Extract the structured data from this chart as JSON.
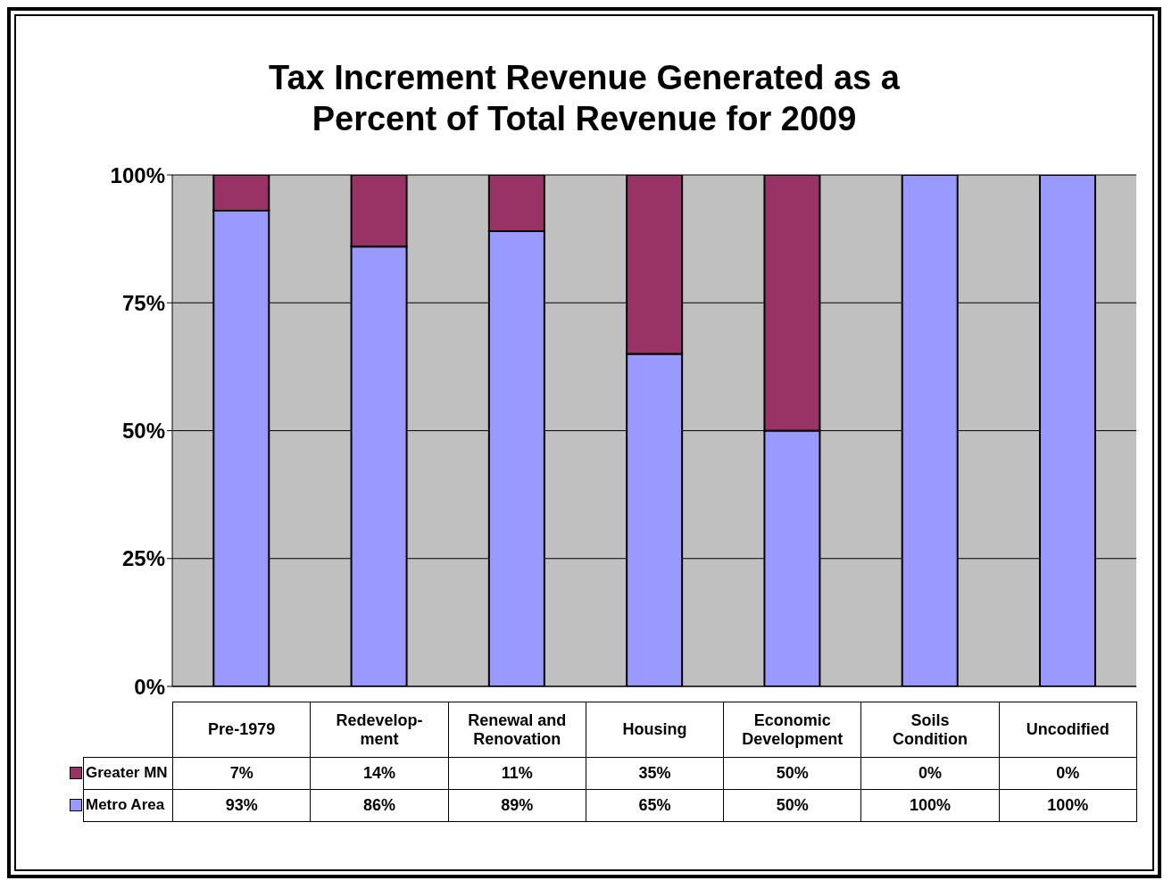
{
  "chart_data": {
    "type": "bar",
    "title": "Tax Increment Revenue Generated as a Percent of Total Revenue for 2009",
    "categories": [
      "Pre-1979",
      "Redevelop-ment",
      "Renewal and Renovation",
      "Housing",
      "Economic Development",
      "Soils Condition",
      "Uncodified"
    ],
    "stacked": true,
    "series": [
      {
        "name": "Metro Area",
        "color": "#9999ff",
        "values": [
          93,
          86,
          89,
          65,
          50,
          100,
          100
        ],
        "value_labels": [
          "93%",
          "86%",
          "89%",
          "65%",
          "50%",
          "100%",
          "100%"
        ]
      },
      {
        "name": "Greater MN",
        "color": "#993366",
        "values": [
          7,
          14,
          11,
          35,
          50,
          0,
          0
        ],
        "value_labels": [
          "7%",
          "14%",
          "11%",
          "35%",
          "50%",
          "0%",
          "0%"
        ]
      }
    ],
    "ylim": [
      0,
      100
    ],
    "yticks": [
      {
        "value": 0,
        "label": "0%"
      },
      {
        "value": 25,
        "label": "25%"
      },
      {
        "value": 50,
        "label": "50%"
      },
      {
        "value": 75,
        "label": "75%"
      },
      {
        "value": 100,
        "label": "100%"
      }
    ],
    "grid": "y",
    "legend": "bottom"
  }
}
